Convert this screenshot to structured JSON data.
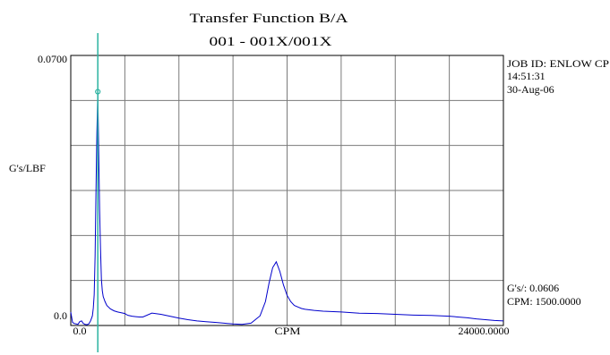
{
  "chart_data": {
    "type": "line",
    "title": "Transfer Function B/A",
    "subtitle": "001 - 001X/001X",
    "xlabel": "CPM",
    "ylabel": "G's/LBF",
    "xlim": [
      0,
      24000
    ],
    "ylim": [
      0,
      0.07
    ],
    "x_tick_labels": [
      "0.0",
      "24000.0000"
    ],
    "y_tick_labels": [
      "0.0700",
      "0.0"
    ],
    "grid": true,
    "grid_divisions": {
      "x": 8,
      "y": 6
    },
    "series_color": "#0000cc",
    "cursor_color": "#2bb3a0",
    "info": {
      "job": "JOB ID: ENLOW CP",
      "time": "14:51:31",
      "date": "30-Aug-06"
    },
    "cursor": {
      "x": 1500,
      "y": 0.0606,
      "value_label": "G's/: 0.0606",
      "cpm_label": "CPM: 1500.0000"
    },
    "series": [
      {
        "x": [
          0,
          100,
          200,
          300,
          400,
          500,
          600,
          700,
          800,
          900,
          1000,
          1100,
          1200,
          1250,
          1300,
          1350,
          1400,
          1450,
          1500,
          1550,
          1600,
          1650,
          1700,
          1750,
          1800,
          1900,
          2000,
          2200,
          2400,
          2600,
          2800,
          3000,
          3100,
          3200,
          3400,
          3600,
          3800,
          4000,
          4500,
          5000,
          5500,
          6000,
          6500,
          7000,
          7500,
          8000,
          8500,
          9000,
          9500,
          10000,
          10500,
          10800,
          11000,
          11200,
          11400,
          11600,
          11800,
          12000,
          12200,
          12400,
          12600,
          12800,
          13000,
          13500,
          14000,
          15000,
          16000,
          17000,
          18000,
          19000,
          20000,
          21000,
          22000,
          22500,
          23000,
          23500,
          24000
        ],
        "y": [
          0.0035,
          0.0008,
          0.0005,
          0.0004,
          0.0003,
          0.001,
          0.0012,
          0.0005,
          0.0003,
          0.0002,
          0.0004,
          0.0012,
          0.0025,
          0.0045,
          0.008,
          0.018,
          0.035,
          0.05,
          0.0606,
          0.045,
          0.03,
          0.02,
          0.012,
          0.009,
          0.0075,
          0.0062,
          0.0052,
          0.0043,
          0.0038,
          0.0035,
          0.0033,
          0.0031,
          0.0028,
          0.0026,
          0.0024,
          0.0023,
          0.0022,
          0.0022,
          0.0032,
          0.0029,
          0.0024,
          0.0019,
          0.0015,
          0.0012,
          0.001,
          0.0008,
          0.0006,
          0.0004,
          0.0003,
          0.0006,
          0.0025,
          0.0062,
          0.011,
          0.015,
          0.0165,
          0.014,
          0.0105,
          0.0078,
          0.0062,
          0.0052,
          0.0048,
          0.0044,
          0.0042,
          0.0039,
          0.0037,
          0.0035,
          0.0032,
          0.0031,
          0.0029,
          0.0027,
          0.0026,
          0.0024,
          0.002,
          0.0017,
          0.0015,
          0.0013,
          0.0012
        ]
      }
    ]
  }
}
